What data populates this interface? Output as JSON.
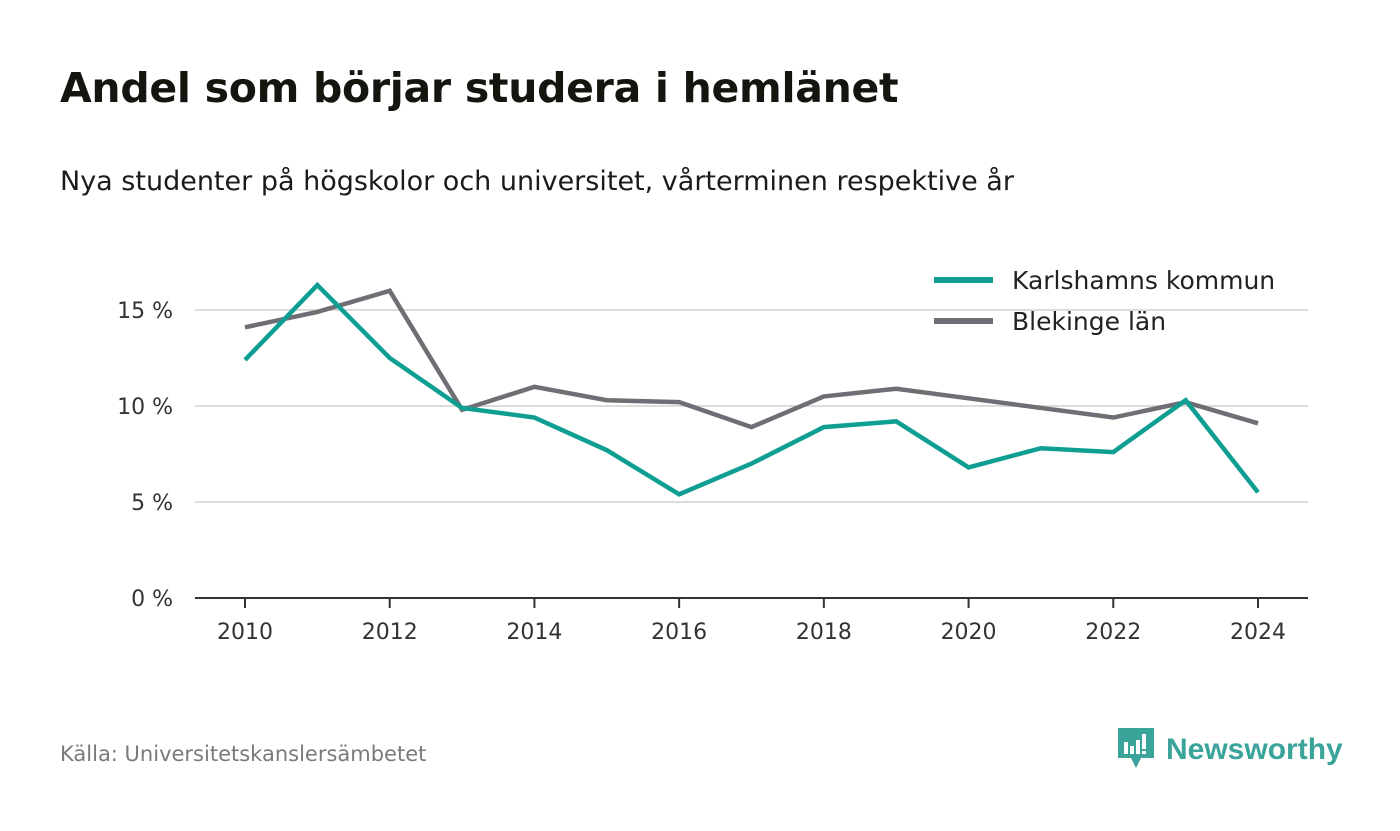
{
  "header": {
    "title": "Andel som börjar studera i hemlänet",
    "subtitle": "Nya studenter på högskolor och universitet, vårterminen respektive år"
  },
  "footer": {
    "source": "Källa: Universitetskanslersämbetet",
    "brand": "Newsworthy"
  },
  "colors": {
    "karlshamn": "#0f9e92",
    "blekinge": "#6f6e75",
    "grid": "#dcdcdc",
    "axis": "#333333",
    "brand": "#3aa39a"
  },
  "chart_data": {
    "type": "line",
    "x": [
      2010,
      2011,
      2012,
      2013,
      2014,
      2015,
      2016,
      2017,
      2018,
      2019,
      2020,
      2021,
      2022,
      2023,
      2024
    ],
    "x_ticks": [
      2010,
      2012,
      2014,
      2016,
      2018,
      2020,
      2022,
      2024
    ],
    "x_tick_labels": [
      "2010",
      "2012",
      "2014",
      "2016",
      "2018",
      "2020",
      "2022",
      "2024"
    ],
    "y_ticks": [
      0,
      5,
      10,
      15
    ],
    "y_tick_labels": [
      "0 %",
      "5 %",
      "10 %",
      "15 %"
    ],
    "ylim": [
      0,
      17
    ],
    "grid": true,
    "legend_position": "top-right",
    "series": [
      {
        "name": "Karlshamns kommun",
        "color": "#0f9e92",
        "values": [
          12.4,
          16.3,
          12.5,
          9.9,
          9.4,
          7.7,
          5.4,
          7.0,
          8.9,
          9.2,
          6.8,
          7.8,
          7.6,
          10.3,
          5.5
        ]
      },
      {
        "name": "Blekinge län",
        "color": "#6f6e75",
        "values": [
          14.1,
          14.9,
          16.0,
          9.8,
          11.0,
          10.3,
          10.2,
          8.9,
          10.5,
          10.9,
          10.4,
          9.9,
          9.4,
          10.2,
          9.1
        ]
      }
    ]
  }
}
